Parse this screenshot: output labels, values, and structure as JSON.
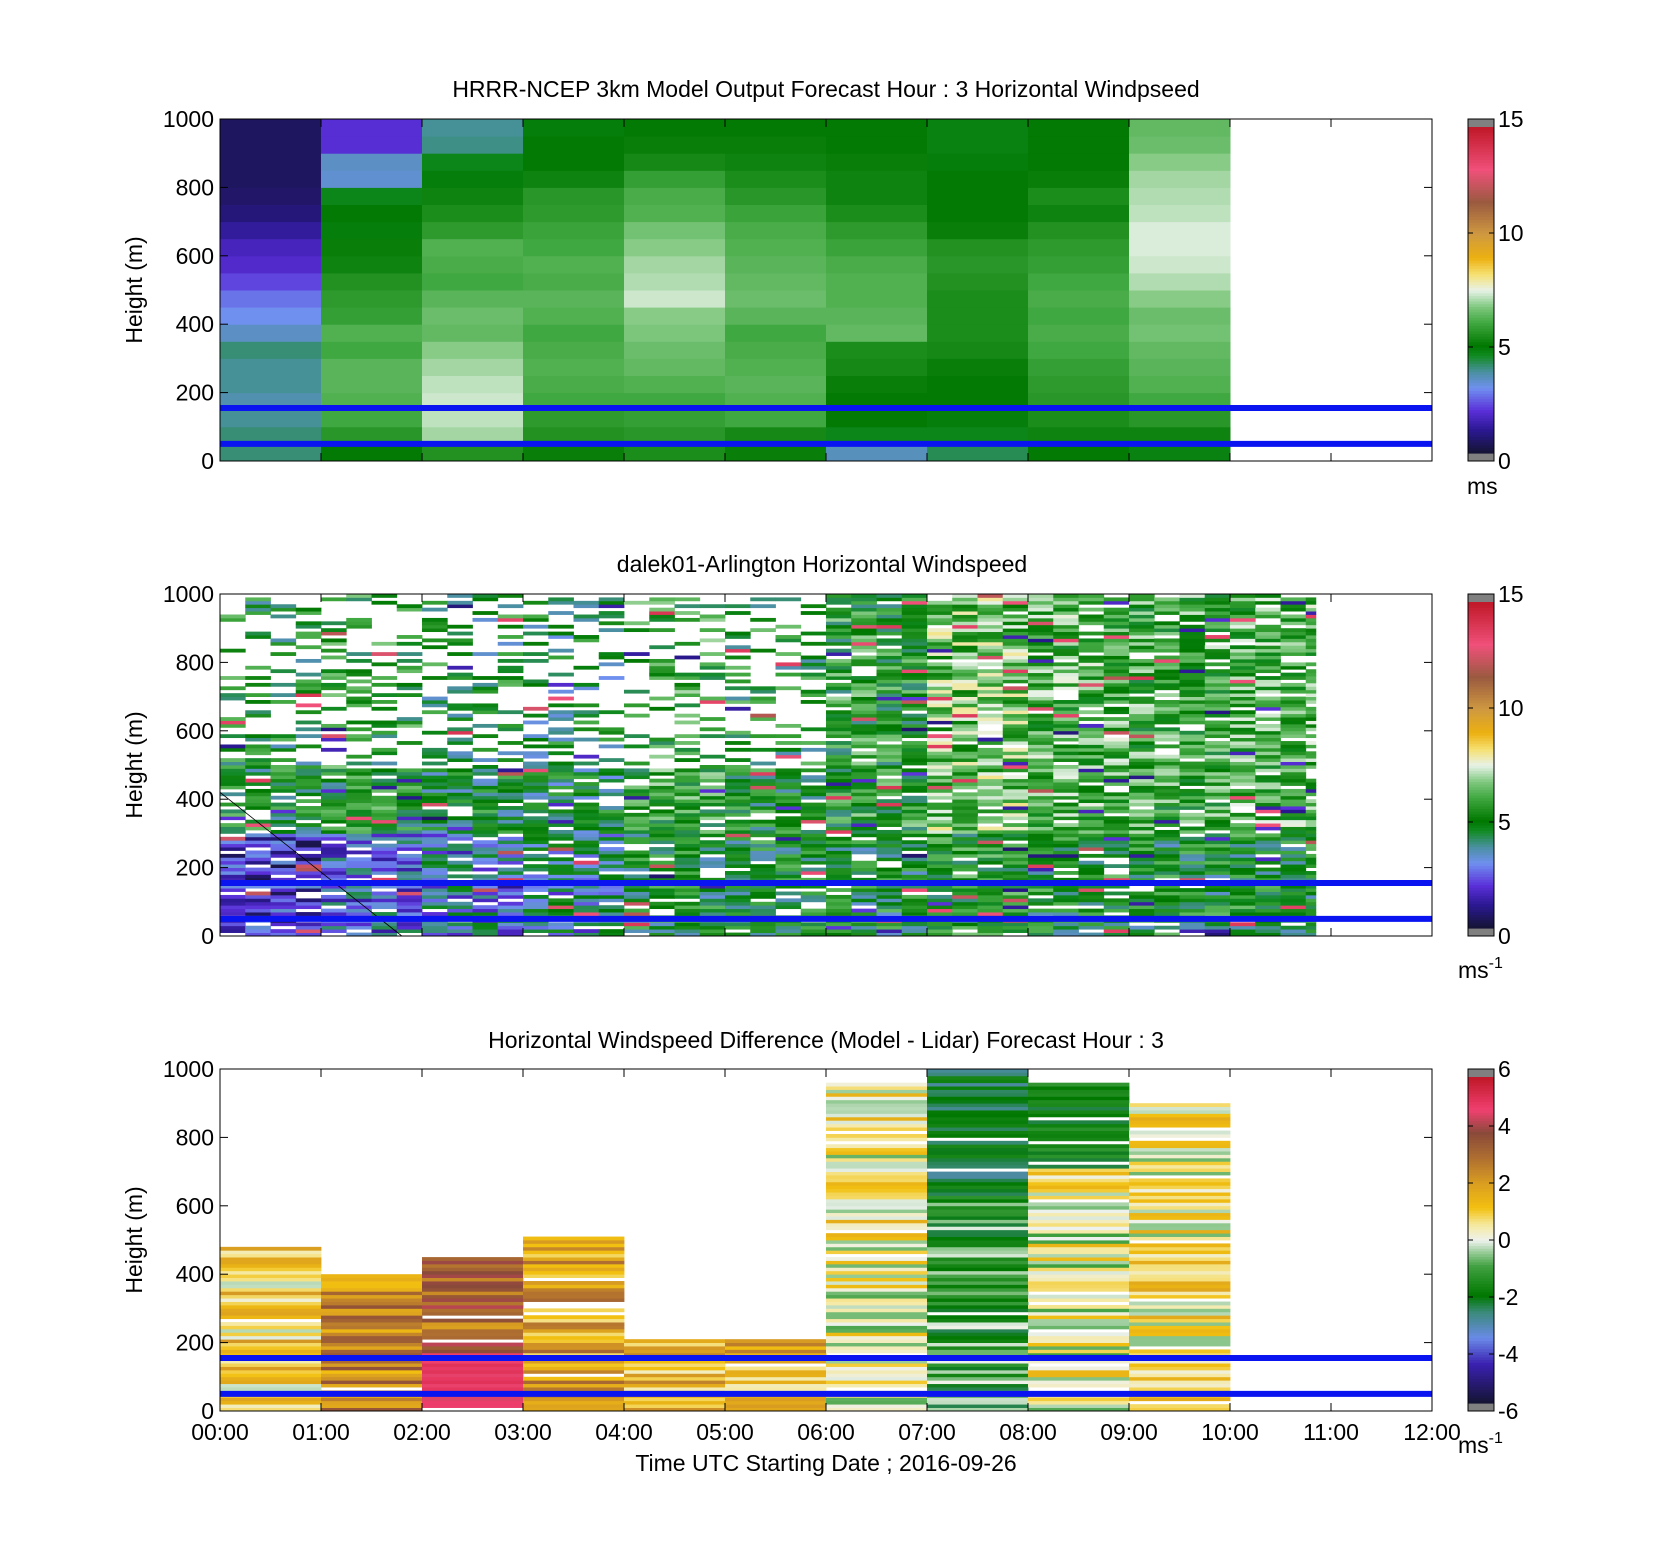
{
  "figure": {
    "xlabel": "Time UTC  Starting Date ; 2016-09-26",
    "x_ticks": [
      "00:00",
      "01:00",
      "02:00",
      "03:00",
      "04:00",
      "05:00",
      "06:00",
      "07:00",
      "08:00",
      "09:00",
      "10:00",
      "11:00",
      "12:00"
    ],
    "y_ticks": [
      "0",
      "200",
      "400",
      "600",
      "800",
      "1000"
    ]
  },
  "colors": {
    "reference_lines": "#0a14f0",
    "axis": "#000000"
  },
  "chart_data": [
    {
      "type": "heatmap",
      "title": "HRRR-NCEP 3km Model Output   Forecast Hour : 3 Horizontal Windpseed",
      "ylabel": "Height (m)",
      "xlim": [
        0,
        12
      ],
      "ylim": [
        0,
        1000
      ],
      "x_unit": "hours UTC",
      "colorbar": {
        "range": [
          0,
          15
        ],
        "ticks": [
          "0",
          "5",
          "10",
          "15"
        ],
        "label": "ms",
        "label_sup": "",
        "colormap": "windspeed"
      },
      "reference_lines_m": [
        50,
        155
      ],
      "data_extent_hours": [
        0,
        10
      ],
      "hourly_profiles_ms": [
        {
          "hour": 0,
          "levels": [
            [
              25,
              4.0
            ],
            [
              75,
              4.0
            ],
            [
              125,
              3.8
            ],
            [
              175,
              3.6
            ],
            [
              225,
              3.8
            ],
            [
              275,
              3.8
            ],
            [
              325,
              4.0
            ],
            [
              375,
              3.4
            ],
            [
              425,
              3.0
            ],
            [
              475,
              2.7
            ],
            [
              525,
              2.2
            ],
            [
              575,
              1.8
            ],
            [
              625,
              1.6
            ],
            [
              675,
              1.2
            ],
            [
              725,
              0.8
            ],
            [
              775,
              0.6
            ],
            [
              825,
              0.5
            ],
            [
              875,
              0.5
            ],
            [
              925,
              0.5
            ],
            [
              975,
              0.5
            ]
          ]
        },
        {
          "hour": 1,
          "levels": [
            [
              25,
              5.0
            ],
            [
              75,
              5.6
            ],
            [
              125,
              6.0
            ],
            [
              175,
              6.2
            ],
            [
              225,
              6.3
            ],
            [
              275,
              6.3
            ],
            [
              325,
              6.0
            ],
            [
              375,
              6.2
            ],
            [
              425,
              5.8
            ],
            [
              475,
              5.7
            ],
            [
              525,
              5.5
            ],
            [
              575,
              5.2
            ],
            [
              625,
              5.1
            ],
            [
              675,
              4.8
            ],
            [
              725,
              4.9
            ],
            [
              775,
              4.6
            ],
            [
              825,
              3.3
            ],
            [
              875,
              3.4
            ],
            [
              925,
              1.9
            ],
            [
              975,
              1.9
            ]
          ]
        },
        {
          "hour": 2,
          "levels": [
            [
              25,
              5.5
            ],
            [
              75,
              7.0
            ],
            [
              125,
              7.2
            ],
            [
              175,
              7.3
            ],
            [
              225,
              7.2
            ],
            [
              275,
              7.0
            ],
            [
              325,
              6.8
            ],
            [
              375,
              6.4
            ],
            [
              425,
              6.5
            ],
            [
              475,
              6.3
            ],
            [
              525,
              6.0
            ],
            [
              575,
              6.1
            ],
            [
              625,
              6.2
            ],
            [
              675,
              5.7
            ],
            [
              725,
              5.4
            ],
            [
              775,
              5.2
            ],
            [
              825,
              4.8
            ],
            [
              875,
              4.6
            ],
            [
              925,
              3.9
            ],
            [
              975,
              3.8
            ]
          ]
        },
        {
          "hour": 3,
          "levels": [
            [
              25,
              5.1
            ],
            [
              75,
              5.5
            ],
            [
              125,
              5.7
            ],
            [
              175,
              6.0
            ],
            [
              225,
              6.1
            ],
            [
              275,
              6.2
            ],
            [
              325,
              6.1
            ],
            [
              375,
              6.0
            ],
            [
              425,
              6.2
            ],
            [
              475,
              6.3
            ],
            [
              525,
              6.1
            ],
            [
              575,
              6.2
            ],
            [
              625,
              6.0
            ],
            [
              675,
              5.9
            ],
            [
              725,
              5.7
            ],
            [
              775,
              5.6
            ],
            [
              825,
              5.2
            ],
            [
              875,
              5.0
            ],
            [
              925,
              4.9
            ],
            [
              975,
              4.8
            ]
          ]
        },
        {
          "hour": 4,
          "levels": [
            [
              25,
              5.4
            ],
            [
              75,
              5.6
            ],
            [
              125,
              5.8
            ],
            [
              175,
              6.0
            ],
            [
              225,
              6.2
            ],
            [
              275,
              6.4
            ],
            [
              325,
              6.5
            ],
            [
              375,
              6.7
            ],
            [
              425,
              6.8
            ],
            [
              475,
              7.3
            ],
            [
              525,
              7.1
            ],
            [
              575,
              7.0
            ],
            [
              625,
              6.8
            ],
            [
              675,
              6.6
            ],
            [
              725,
              6.2
            ],
            [
              775,
              6.1
            ],
            [
              825,
              5.8
            ],
            [
              875,
              5.3
            ],
            [
              925,
              5.1
            ],
            [
              975,
              5.0
            ]
          ]
        },
        {
          "hour": 5,
          "levels": [
            [
              25,
              5.1
            ],
            [
              75,
              5.3
            ],
            [
              125,
              6.0
            ],
            [
              175,
              6.2
            ],
            [
              225,
              6.3
            ],
            [
              275,
              6.2
            ],
            [
              325,
              6.1
            ],
            [
              375,
              6.0
            ],
            [
              425,
              6.3
            ],
            [
              475,
              6.5
            ],
            [
              525,
              6.4
            ],
            [
              575,
              6.3
            ],
            [
              625,
              6.2
            ],
            [
              675,
              6.1
            ],
            [
              725,
              5.9
            ],
            [
              775,
              5.6
            ],
            [
              825,
              5.4
            ],
            [
              875,
              5.2
            ],
            [
              925,
              5.1
            ],
            [
              975,
              5.0
            ]
          ]
        },
        {
          "hour": 6,
          "levels": [
            [
              25,
              3.5
            ],
            [
              75,
              4.6
            ],
            [
              125,
              5.0
            ],
            [
              175,
              5.0
            ],
            [
              225,
              5.1
            ],
            [
              275,
              5.3
            ],
            [
              325,
              5.4
            ],
            [
              375,
              6.4
            ],
            [
              425,
              6.3
            ],
            [
              475,
              6.2
            ],
            [
              525,
              6.2
            ],
            [
              575,
              6.1
            ],
            [
              625,
              5.9
            ],
            [
              675,
              5.7
            ],
            [
              725,
              5.4
            ],
            [
              775,
              5.2
            ],
            [
              825,
              5.2
            ],
            [
              875,
              5.1
            ],
            [
              925,
              5.0
            ],
            [
              975,
              5.0
            ]
          ]
        },
        {
          "hour": 7,
          "levels": [
            [
              25,
              4.2
            ],
            [
              75,
              4.6
            ],
            [
              125,
              4.8
            ],
            [
              175,
              4.9
            ],
            [
              225,
              5.0
            ],
            [
              275,
              5.1
            ],
            [
              325,
              5.3
            ],
            [
              375,
              5.4
            ],
            [
              425,
              5.4
            ],
            [
              475,
              5.4
            ],
            [
              525,
              5.5
            ],
            [
              575,
              5.6
            ],
            [
              625,
              5.5
            ],
            [
              675,
              5.1
            ],
            [
              725,
              5.0
            ],
            [
              775,
              4.9
            ],
            [
              825,
              4.9
            ],
            [
              875,
              4.8
            ],
            [
              925,
              4.7
            ],
            [
              975,
              4.7
            ]
          ]
        },
        {
          "hour": 8,
          "levels": [
            [
              25,
              5.0
            ],
            [
              75,
              5.2
            ],
            [
              125,
              5.4
            ],
            [
              175,
              5.6
            ],
            [
              225,
              5.7
            ],
            [
              275,
              5.8
            ],
            [
              325,
              6.0
            ],
            [
              375,
              6.1
            ],
            [
              425,
              6.0
            ],
            [
              475,
              6.1
            ],
            [
              525,
              6.0
            ],
            [
              575,
              5.8
            ],
            [
              625,
              5.7
            ],
            [
              675,
              5.5
            ],
            [
              725,
              5.2
            ],
            [
              775,
              5.4
            ],
            [
              825,
              5.1
            ],
            [
              875,
              5.0
            ],
            [
              925,
              5.0
            ],
            [
              975,
              5.0
            ]
          ]
        },
        {
          "hour": 9,
          "levels": [
            [
              25,
              4.7
            ],
            [
              75,
              5.2
            ],
            [
              125,
              5.6
            ],
            [
              175,
              6.0
            ],
            [
              225,
              6.2
            ],
            [
              275,
              6.3
            ],
            [
              325,
              6.4
            ],
            [
              375,
              6.6
            ],
            [
              425,
              6.5
            ],
            [
              475,
              6.8
            ],
            [
              525,
              7.1
            ],
            [
              575,
              7.3
            ],
            [
              625,
              7.4
            ],
            [
              675,
              7.4
            ],
            [
              725,
              7.2
            ],
            [
              775,
              7.1
            ],
            [
              825,
              7.0
            ],
            [
              875,
              6.8
            ],
            [
              925,
              6.5
            ],
            [
              975,
              6.4
            ]
          ]
        }
      ]
    },
    {
      "type": "heatmap",
      "title": "dalek01-Arlington  Horizontal Windspeed",
      "ylabel": "Height (m)",
      "xlim": [
        0,
        12
      ],
      "ylim": [
        0,
        1000
      ],
      "x_unit": "hours UTC",
      "colorbar": {
        "range": [
          0,
          15
        ],
        "ticks": [
          "0",
          "5",
          "10",
          "15"
        ],
        "label": "ms",
        "label_sup": "-1",
        "colormap": "windspeed"
      },
      "reference_lines_m": [
        50,
        155
      ],
      "data_extent_hours": [
        0,
        10.85
      ],
      "representative_ms_by_hour": [
        {
          "hour": 0,
          "below_300m": 1.8,
          "above_300m": 5.0
        },
        {
          "hour": 1,
          "below_300m": 2.8,
          "above_300m": 5.2
        },
        {
          "hour": 2,
          "below_300m": 3.2,
          "above_300m": 4.8
        },
        {
          "hour": 3,
          "below_300m": 4.0,
          "above_300m": 4.5
        },
        {
          "hour": 4,
          "below_300m": 4.8,
          "above_300m": 5.6
        },
        {
          "hour": 5,
          "below_300m": 5.0,
          "above_300m": 5.0
        },
        {
          "hour": 6,
          "below_300m": 4.8,
          "above_300m": 5.4
        },
        {
          "hour": 7,
          "below_300m": 5.2,
          "above_300m": 6.5
        },
        {
          "hour": 8,
          "below_300m": 5.0,
          "above_300m": 6.0
        },
        {
          "hour": 9,
          "below_300m": 4.9,
          "above_300m": 5.8
        },
        {
          "hour": 10,
          "below_300m": 5.0,
          "above_300m": 6.0
        }
      ]
    },
    {
      "type": "heatmap",
      "title": "Horizontal Windspeed Difference (Model - Lidar) Forecast Hour : 3",
      "ylabel": "Height (m)",
      "xlim": [
        0,
        12
      ],
      "ylim": [
        0,
        1000
      ],
      "x_unit": "hours UTC",
      "colorbar": {
        "range": [
          -6,
          6
        ],
        "ticks": [
          "-6",
          "-4",
          "-2",
          "0",
          "2",
          "4",
          "6"
        ],
        "label": "ms",
        "label_sup": "-1",
        "colormap": "difference"
      },
      "reference_lines_m": [
        50,
        155
      ],
      "hourly_difference_ms": [
        {
          "hour": 0,
          "top_m": 480,
          "mean": 1.0
        },
        {
          "hour": 1,
          "top_m": 400,
          "mean": 2.5
        },
        {
          "hour": 2,
          "top_m": 450,
          "mean": 3.2
        },
        {
          "hour": 3,
          "top_m": 505,
          "mean": 2.0
        },
        {
          "hour": 4,
          "top_m": 210,
          "mean": 1.4
        },
        {
          "hour": 5,
          "top_m": 210,
          "mean": 1.6
        },
        {
          "hour": 6,
          "top_m": 960,
          "mean": 0.4
        },
        {
          "hour": 7,
          "top_m": 1000,
          "mean": -1.2
        },
        {
          "hour": 8,
          "top_m": 960,
          "mean": 0.2
        },
        {
          "hour": 9,
          "top_m": 900,
          "mean": 0.6
        }
      ]
    }
  ]
}
